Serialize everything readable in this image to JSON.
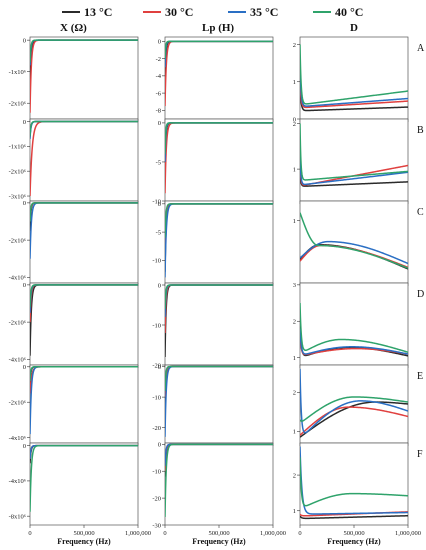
{
  "legend": [
    {
      "label": "13 °C",
      "color": "#2b2b2b"
    },
    {
      "label": "30 °C",
      "color": "#e0403f"
    },
    {
      "label": "35 °C",
      "color": "#2a6fc4"
    },
    {
      "label": "40 °C",
      "color": "#2fa36b"
    }
  ],
  "column_titles": [
    "X (Ω)",
    "Lp (H)",
    "D"
  ],
  "row_labels": [
    "A",
    "B",
    "C",
    "D",
    "E",
    "F"
  ],
  "x_axis": {
    "label": "Frequency (Hz)",
    "ticks": [
      0,
      500000,
      1000000
    ],
    "tick_labels": [
      "0",
      "500,000",
      "1,000,000"
    ]
  },
  "chart_data": [
    {
      "type": "line",
      "row": "A",
      "col": "X (Ω)",
      "ylim": [
        -2500000,
        100000
      ],
      "yticks": [
        0,
        -1000000,
        -2000000
      ],
      "ytick_labels": [
        "0",
        "-1x10⁶",
        "-2x10⁶"
      ],
      "series": [
        {
          "name": "13 °C",
          "start": -1500000,
          "tau": 10000,
          "end": 0
        },
        {
          "name": "30 °C",
          "start": -2300000,
          "tau": 12000,
          "end": 0
        },
        {
          "name": "35 °C",
          "start": -800000,
          "tau": 9000,
          "end": 0
        },
        {
          "name": "40 °C",
          "start": -700000,
          "tau": 8000,
          "end": 0
        }
      ]
    },
    {
      "type": "line",
      "row": "A",
      "col": "Lp (H)",
      "ylim": [
        -9,
        0.5
      ],
      "yticks": [
        0,
        -2,
        -4,
        -6,
        -8
      ],
      "ytick_labels": [
        "0",
        "-2",
        "-4",
        "-6",
        "-8"
      ],
      "series": [
        {
          "name": "13 °C",
          "start": -5,
          "tau": 8000,
          "end": 0
        },
        {
          "name": "30 °C",
          "start": -7.5,
          "tau": 12000,
          "end": 0
        },
        {
          "name": "35 °C",
          "start": -3,
          "tau": 7000,
          "end": 0
        },
        {
          "name": "40 °C",
          "start": -2,
          "tau": 6000,
          "end": 0
        }
      ]
    },
    {
      "type": "line",
      "row": "A",
      "col": "D",
      "ylim": [
        0,
        2.2
      ],
      "yticks": [
        0,
        1,
        2
      ],
      "ytick_labels": [
        "0",
        "1",
        "2"
      ],
      "series": [
        {
          "name": "13 °C",
          "start": 0.9,
          "tau": 10000,
          "base": 0.22,
          "slope": 0.1
        },
        {
          "name": "30 °C",
          "start": 1.0,
          "tau": 10000,
          "base": 0.3,
          "slope": 0.18
        },
        {
          "name": "35 °C",
          "start": 1.4,
          "tau": 10000,
          "base": 0.33,
          "slope": 0.22
        },
        {
          "name": "40 °C",
          "start": 2.0,
          "tau": 10000,
          "base": 0.38,
          "slope": 0.37
        }
      ]
    },
    {
      "type": "line",
      "row": "B",
      "col": "X (Ω)",
      "ylim": [
        -3200000,
        100000
      ],
      "yticks": [
        0,
        -1000000,
        -2000000,
        -3000000
      ],
      "ytick_labels": [
        "0",
        "-1x10⁶",
        "-2x10⁶",
        "-3x10⁶"
      ],
      "series": [
        {
          "name": "13 °C",
          "start": -600000,
          "tau": 9000,
          "end": 0
        },
        {
          "name": "30 °C",
          "start": -3000000,
          "tau": 20000,
          "end": 0
        },
        {
          "name": "35 °C",
          "start": -700000,
          "tau": 9000,
          "end": 0
        },
        {
          "name": "40 °C",
          "start": -600000,
          "tau": 8000,
          "end": 0
        }
      ]
    },
    {
      "type": "line",
      "row": "B",
      "col": "Lp (H)",
      "ylim": [
        -10,
        0.5
      ],
      "yticks": [
        0,
        -5,
        -10
      ],
      "ytick_labels": [
        "0",
        "-5",
        "-10"
      ],
      "series": [
        {
          "name": "13 °C",
          "start": -6,
          "tau": 8000,
          "end": 0
        },
        {
          "name": "30 °C",
          "start": -9,
          "tau": 12000,
          "end": 0
        },
        {
          "name": "35 °C",
          "start": -5,
          "tau": 7000,
          "end": 0
        },
        {
          "name": "40 °C",
          "start": -4,
          "tau": 6000,
          "end": 0
        }
      ]
    },
    {
      "type": "line",
      "row": "B",
      "col": "D",
      "ylim": [
        0.3,
        2.1
      ],
      "yticks": [
        1,
        2
      ],
      "ytick_labels": [
        "1",
        "2"
      ],
      "series": [
        {
          "name": "13 °C",
          "start": 0.9,
          "tau": 8000,
          "base": 0.62,
          "slope": 0.1
        },
        {
          "name": "30 °C",
          "start": 1.1,
          "tau": 8000,
          "base": 0.63,
          "slope": 0.45
        },
        {
          "name": "35 °C",
          "start": 1.3,
          "tau": 8000,
          "base": 0.65,
          "slope": 0.28
        },
        {
          "name": "40 °C",
          "start": 2.0,
          "tau": 8000,
          "base": 0.75,
          "slope": 0.2
        }
      ]
    },
    {
      "type": "line",
      "row": "C",
      "col": "X (Ω)",
      "ylim": [
        -4300000,
        100000
      ],
      "yticks": [
        0,
        -2000000,
        -4000000
      ],
      "ytick_labels": [
        "0",
        "-2x10⁶",
        "-4x10⁶"
      ],
      "series": [
        {
          "name": "13 °C",
          "start": -1500000,
          "tau": 8000,
          "end": 0
        },
        {
          "name": "30 °C",
          "start": -1000000,
          "tau": 8000,
          "end": 0
        },
        {
          "name": "35 °C",
          "start": -3000000,
          "tau": 12000,
          "end": 0
        },
        {
          "name": "40 °C",
          "start": -1000000,
          "tau": 7000,
          "end": 0
        }
      ]
    },
    {
      "type": "line",
      "row": "C",
      "col": "Lp (H)",
      "ylim": [
        -14,
        0.5
      ],
      "yticks": [
        0,
        -5,
        -10
      ],
      "ytick_labels": [
        "0",
        "-5",
        "-10"
      ],
      "series": [
        {
          "name": "13 °C",
          "start": -12,
          "tau": 10000,
          "end": 0
        },
        {
          "name": "30 °C",
          "start": -8,
          "tau": 9000,
          "end": 0
        },
        {
          "name": "35 °C",
          "start": -13,
          "tau": 12000,
          "end": 0
        },
        {
          "name": "40 °C",
          "start": -6,
          "tau": 8000,
          "end": 0
        }
      ]
    },
    {
      "type": "line",
      "row": "C",
      "col": "D",
      "ylim": [
        0.2,
        1.25
      ],
      "yticks": [
        1
      ],
      "ytick_labels": [
        "1"
      ],
      "series": [
        {
          "name": "13 °C",
          "start": 0.5,
          "peak": 0.69,
          "px": 180000,
          "end": 0.38
        },
        {
          "name": "30 °C",
          "start": 0.48,
          "peak": 0.68,
          "px": 190000,
          "end": 0.4
        },
        {
          "name": "35 °C",
          "start": 0.52,
          "peak": 0.73,
          "px": 260000,
          "end": 0.45
        },
        {
          "name": "40 °C",
          "start": 1.1,
          "peak": 0.68,
          "px": 170000,
          "end": 0.39
        }
      ]
    },
    {
      "type": "line",
      "row": "D",
      "col": "X (Ω)",
      "ylim": [
        -4300000,
        100000
      ],
      "yticks": [
        0,
        -2000000,
        -4000000
      ],
      "ytick_labels": [
        "0",
        "-2x10⁶",
        "-4x10⁶"
      ],
      "series": [
        {
          "name": "13 °C",
          "start": -3800000,
          "tau": 12000,
          "end": 0
        },
        {
          "name": "30 °C",
          "start": -2000000,
          "tau": 10000,
          "end": 0
        },
        {
          "name": "35 °C",
          "start": -1500000,
          "tau": 9000,
          "end": 0
        },
        {
          "name": "40 °C",
          "start": -1200000,
          "tau": 8000,
          "end": 0
        }
      ]
    },
    {
      "type": "line",
      "row": "D",
      "col": "Lp (H)",
      "ylim": [
        -20,
        0.5
      ],
      "yticks": [
        0,
        -10,
        -20
      ],
      "ytick_labels": [
        "0",
        "-10",
        "-20"
      ],
      "series": [
        {
          "name": "13 °C",
          "start": -18,
          "tau": 10000,
          "end": 0
        },
        {
          "name": "30 °C",
          "start": -12,
          "tau": 9000,
          "end": 0
        },
        {
          "name": "35 °C",
          "start": -8,
          "tau": 8000,
          "end": 0
        },
        {
          "name": "40 °C",
          "start": -6,
          "tau": 7000,
          "end": 0
        }
      ]
    },
    {
      "type": "line",
      "row": "D",
      "col": "D",
      "ylim": [
        0.8,
        3.05
      ],
      "yticks": [
        1,
        2,
        3
      ],
      "ytick_labels": [
        "1",
        "2",
        "3"
      ],
      "series": [
        {
          "name": "13 °C",
          "start": 1.9,
          "peak": 1.28,
          "px": 450000,
          "end": 1.05,
          "dip": 1.0
        },
        {
          "name": "30 °C",
          "start": 1.6,
          "peak": 1.25,
          "px": 520000,
          "end": 1.1,
          "dip": 1.05
        },
        {
          "name": "35 °C",
          "start": 1.8,
          "peak": 1.3,
          "px": 480000,
          "end": 1.1,
          "dip": 1.05
        },
        {
          "name": "40 °C",
          "start": 2.5,
          "peak": 1.5,
          "px": 380000,
          "end": 1.15,
          "dip": 1.1
        }
      ]
    },
    {
      "type": "line",
      "row": "E",
      "col": "X (Ω)",
      "ylim": [
        -4300000,
        100000
      ],
      "yticks": [
        0,
        -2000000,
        -4000000
      ],
      "ytick_labels": [
        "0",
        "-2x10⁶",
        "-4x10⁶"
      ],
      "series": [
        {
          "name": "13 °C",
          "start": -1000000,
          "tau": 8000,
          "end": 0
        },
        {
          "name": "30 °C",
          "start": -1500000,
          "tau": 15000,
          "end": 0
        },
        {
          "name": "35 °C",
          "start": -3800000,
          "tau": 12000,
          "end": 0
        },
        {
          "name": "40 °C",
          "start": -800000,
          "tau": 7000,
          "end": 0
        }
      ]
    },
    {
      "type": "line",
      "row": "E",
      "col": "Lp (H)",
      "ylim": [
        -25,
        0.5
      ],
      "yticks": [
        0,
        -10,
        -20
      ],
      "ytick_labels": [
        "0",
        "-10",
        "-20"
      ],
      "series": [
        {
          "name": "13 °C",
          "start": -15,
          "tau": 9000,
          "end": 0
        },
        {
          "name": "30 °C",
          "start": -10,
          "tau": 9000,
          "end": 0
        },
        {
          "name": "35 °C",
          "start": -23,
          "tau": 11000,
          "end": 0
        },
        {
          "name": "40 °C",
          "start": -8,
          "tau": 7000,
          "end": 0
        }
      ]
    },
    {
      "type": "line",
      "row": "E",
      "col": "D",
      "ylim": [
        0.7,
        2.7
      ],
      "yticks": [
        1,
        2
      ],
      "ytick_labels": [
        "1",
        "2"
      ],
      "series": [
        {
          "name": "13 °C",
          "start": 0.85,
          "peak": 1.75,
          "px": 700000,
          "end": 1.7,
          "dip": 0.85
        },
        {
          "name": "30 °C",
          "start": 0.9,
          "peak": 1.62,
          "px": 450000,
          "end": 1.38,
          "dip": 0.9
        },
        {
          "name": "35 °C",
          "start": 2.6,
          "peak": 1.78,
          "px": 560000,
          "end": 1.52,
          "dip": 0.8
        },
        {
          "name": "40 °C",
          "start": 1.3,
          "peak": 1.88,
          "px": 500000,
          "end": 1.75,
          "dip": 1.2
        }
      ]
    },
    {
      "type": "line",
      "row": "F",
      "col": "X (Ω)",
      "ylim": [
        -9000000,
        300000
      ],
      "yticks": [
        0,
        -4000000,
        -8000000
      ],
      "ytick_labels": [
        "0",
        "-4x10⁶",
        "-8x10⁶"
      ],
      "series": [
        {
          "name": "13 °C",
          "start": -2000000,
          "tau": 9000,
          "end": 0
        },
        {
          "name": "30 °C",
          "start": -1500000,
          "tau": 8000,
          "end": 0
        },
        {
          "name": "35 °C",
          "start": -1500000,
          "tau": 8000,
          "end": 0
        },
        {
          "name": "40 °C",
          "start": -7500000,
          "tau": 12000,
          "end": 0
        }
      ]
    },
    {
      "type": "line",
      "row": "F",
      "col": "Lp (H)",
      "ylim": [
        -30,
        0.5
      ],
      "yticks": [
        0,
        -10,
        -20,
        -30
      ],
      "ytick_labels": [
        "0",
        "-10",
        "-20",
        "-30"
      ],
      "series": [
        {
          "name": "13 °C",
          "start": -12,
          "tau": 9000,
          "end": 0
        },
        {
          "name": "30 °C",
          "start": -10,
          "tau": 9000,
          "end": 0
        },
        {
          "name": "35 °C",
          "start": -8,
          "tau": 8000,
          "end": 0
        },
        {
          "name": "40 °C",
          "start": -27,
          "tau": 11000,
          "end": 0
        }
      ]
    },
    {
      "type": "line",
      "row": "F",
      "col": "D",
      "ylim": [
        0.6,
        2.9
      ],
      "yticks": [
        1,
        2
      ],
      "ytick_labels": [
        "1",
        "2"
      ],
      "series": [
        {
          "name": "13 °C",
          "start": 0.85,
          "tau": 15000,
          "base": 0.78,
          "slope": 0.08
        },
        {
          "name": "30 °C",
          "start": 0.9,
          "tau": 15000,
          "base": 0.85,
          "slope": 0.12
        },
        {
          "name": "35 °C",
          "start": 2.8,
          "tau": 18000,
          "base": 0.9,
          "slope": 0.05
        },
        {
          "name": "40 °C",
          "start": 2.5,
          "peak": 1.48,
          "px": 480000,
          "end": 1.42,
          "dip": 1.05
        }
      ]
    }
  ]
}
